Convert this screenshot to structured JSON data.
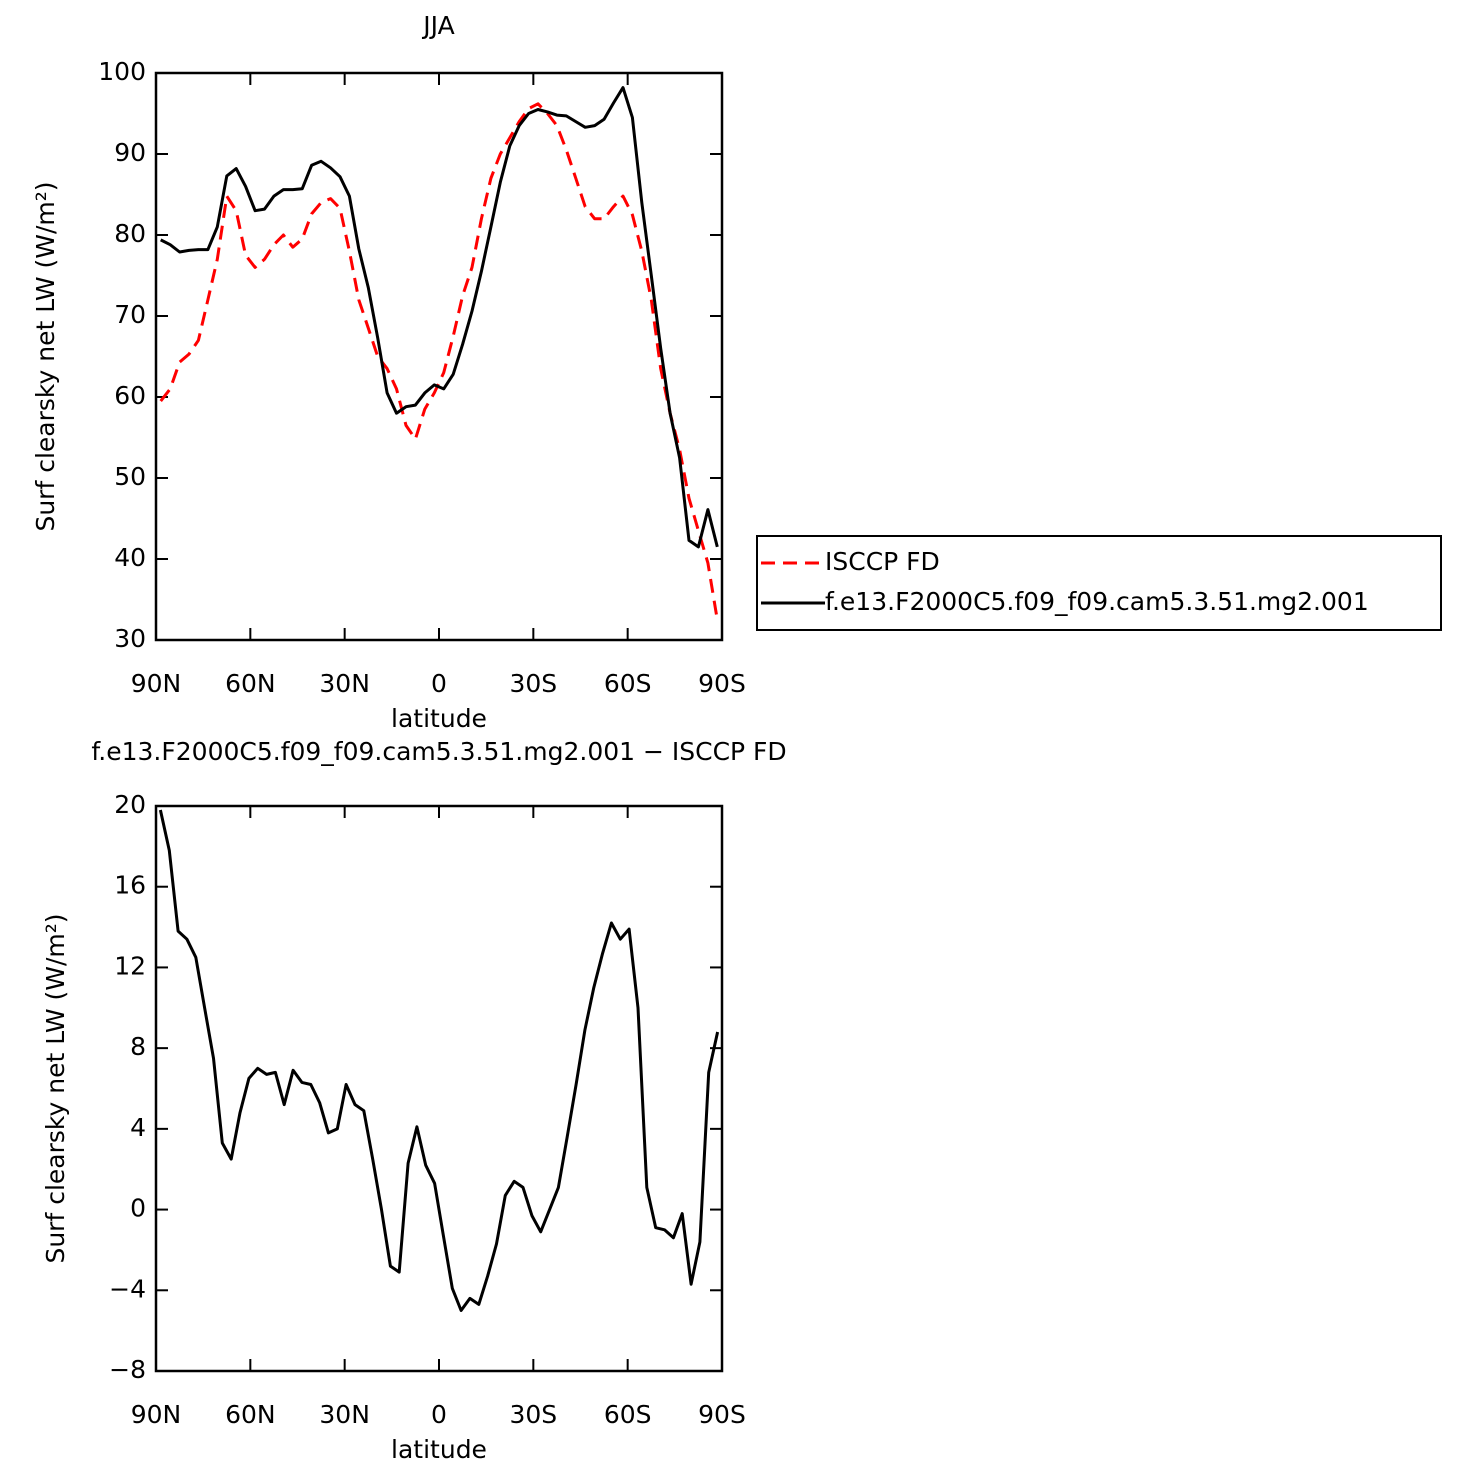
{
  "chart_data": [
    {
      "type": "line",
      "title": "JJA",
      "xlabel": "latitude",
      "ylabel": "Surf clearsky net LW (W/m²)",
      "x": [
        88.5,
        85.5,
        82.5,
        79.5,
        76.5,
        73.5,
        70.5,
        67.5,
        64.5,
        61.5,
        58.5,
        55.5,
        52.5,
        49.5,
        46.5,
        43.5,
        40.5,
        37.5,
        34.5,
        31.5,
        28.5,
        25.5,
        22.5,
        19.5,
        16.5,
        13.5,
        10.5,
        7.5,
        4.5,
        1.5,
        -1.5,
        -4.5,
        -7.5,
        -10.5,
        -13.5,
        -16.5,
        -19.5,
        -22.5,
        -25.5,
        -28.5,
        -31.5,
        -34.5,
        -37.5,
        -40.5,
        -43.5,
        -46.5,
        -49.5,
        -52.5,
        -55.5,
        -58.5,
        -61.5,
        -64.5,
        -67.5,
        -70.5,
        -73.5,
        -76.5,
        -79.5,
        -82.5,
        -85.5,
        -88.5
      ],
      "series": [
        {
          "name": "ISCCP FD",
          "color": "#ff0000",
          "line_style": "dashed",
          "values": [
            59.5,
            61,
            64.3,
            65.3,
            67,
            72,
            77,
            84.8,
            83,
            77.5,
            76,
            77,
            78.8,
            80,
            78.5,
            79.5,
            82.6,
            84,
            84.5,
            83.3,
            78,
            72,
            68.5,
            65,
            63.5,
            61,
            56.5,
            54.8,
            58.5,
            60.5,
            63,
            67.5,
            72.5,
            76,
            82,
            87,
            90,
            92,
            94,
            95.6,
            96.2,
            95,
            93.5,
            90.5,
            87,
            83.5,
            82,
            82,
            83.5,
            84.8,
            82.5,
            78,
            72,
            63.5,
            58,
            53.5,
            47.5,
            43.5,
            39.5,
            32.5
          ]
        },
        {
          "name": "f.e13.F2000C5.f09_f09.cam5.3.51.mg2.001",
          "color": "#000000",
          "line_style": "solid",
          "values": [
            79.4,
            78.8,
            77.9,
            78.1,
            78.2,
            78.2,
            81,
            87.3,
            88.2,
            86.0,
            83.0,
            83.2,
            84.8,
            85.6,
            85.6,
            85.7,
            88.6,
            89.1,
            88.3,
            87.2,
            84.8,
            78.3,
            73.5,
            67.3,
            60.5,
            58.0,
            58.8,
            59.0,
            60.5,
            61.5,
            61.0,
            62.8,
            66.5,
            70.6,
            75.5,
            81,
            86.5,
            91,
            93.5,
            95.0,
            95.5,
            95.2,
            94.8,
            94.7,
            94.0,
            93.3,
            93.5,
            94.3,
            96.3,
            98.2,
            94.5,
            84,
            75,
            66,
            58,
            52.5,
            42.3,
            41.5,
            46.1,
            41.5
          ]
        }
      ],
      "xlim": [
        90,
        -90
      ],
      "xticks": [
        {
          "value": 90,
          "label": "90N"
        },
        {
          "value": 60,
          "label": "60N"
        },
        {
          "value": 30,
          "label": "30N"
        },
        0,
        {
          "value": -30,
          "label": "30S"
        },
        {
          "value": -60,
          "label": "60S"
        },
        {
          "value": -90,
          "label": "90S"
        }
      ],
      "ylim": [
        30,
        100
      ],
      "yticks": [
        30,
        40,
        50,
        60,
        70,
        80,
        90,
        100
      ],
      "legend": "right",
      "grid": false
    },
    {
      "type": "line",
      "title": "f.e13.F2000C5.f09_f09.cam5.3.51.mg2.001 − ISCCP FD",
      "xlabel": "latitude",
      "ylabel": "Surf clearsky net LW (W/m²)",
      "x": [
        88.59,
        85.78,
        82.97,
        80.16,
        77.34,
        74.53,
        71.72,
        68.91,
        66.09,
        63.28,
        60.47,
        57.66,
        54.84,
        52.03,
        49.22,
        46.41,
        43.59,
        40.78,
        37.97,
        35.16,
        32.34,
        29.53,
        26.72,
        23.91,
        21.09,
        18.28,
        15.47,
        12.66,
        9.84,
        7.03,
        4.22,
        1.41,
        -1.41,
        -4.22,
        -7.03,
        -9.84,
        -12.66,
        -15.47,
        -18.28,
        -21.09,
        -23.91,
        -26.72,
        -29.53,
        -32.34,
        -35.16,
        -37.97,
        -40.78,
        -43.59,
        -46.41,
        -49.22,
        -52.03,
        -54.84,
        -57.66,
        -60.47,
        -63.28,
        -66.09,
        -68.91,
        -71.72,
        -74.53,
        -77.34,
        -80.16,
        -82.97,
        -85.78,
        -88.59
      ],
      "color": "#000000",
      "values": [
        19.8,
        17.8,
        13.8,
        13.4,
        12.5,
        10.0,
        7.5,
        3.3,
        2.5,
        4.8,
        6.5,
        7.0,
        6.7,
        6.8,
        5.2,
        6.9,
        6.3,
        6.2,
        5.3,
        3.8,
        4.0,
        6.2,
        5.2,
        4.9,
        2.5,
        0.0,
        -2.8,
        -3.1,
        2.3,
        4.1,
        2.2,
        1.3,
        -1.3,
        -3.9,
        -5.0,
        -4.4,
        -4.7,
        -3.3,
        -1.7,
        0.7,
        1.4,
        1.1,
        -0.3,
        -1.1,
        0.0,
        1.1,
        3.6,
        6.2,
        8.9,
        11.0,
        12.7,
        14.2,
        13.4,
        13.9,
        10.0,
        1.1,
        -0.9,
        -1.0,
        -1.4,
        -0.2,
        -3.7,
        -1.6,
        6.8,
        8.8
      ],
      "xlim": [
        90,
        -90
      ],
      "xticks": [
        {
          "value": 90,
          "label": "90N"
        },
        {
          "value": 60,
          "label": "60N"
        },
        {
          "value": 30,
          "label": "30N"
        },
        0,
        {
          "value": -30,
          "label": "30S"
        },
        {
          "value": -60,
          "label": "60S"
        },
        {
          "value": -90,
          "label": "90S"
        }
      ],
      "ylim": [
        -8,
        20
      ],
      "yticks": [
        {
          "value": -8,
          "label": "−8"
        },
        {
          "value": -4,
          "label": "−4"
        },
        0,
        4,
        8,
        12,
        16,
        20
      ],
      "grid": false
    }
  ]
}
